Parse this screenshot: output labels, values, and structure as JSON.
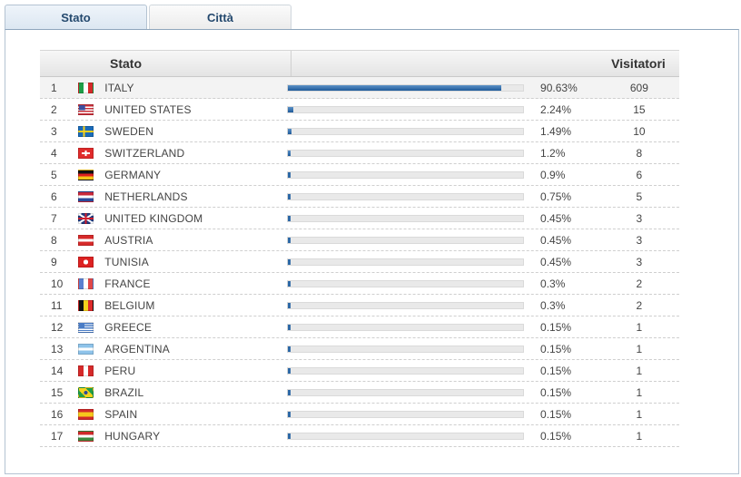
{
  "tabs": [
    {
      "label": "Stato",
      "active": true
    },
    {
      "label": "Città",
      "active": false
    }
  ],
  "table": {
    "headers": {
      "country": "Stato",
      "visitors": "Visitatori"
    },
    "rows": [
      {
        "rank": "1",
        "country": "ITALY",
        "percent": "90.63%",
        "visitors": "609",
        "share": 0.9063,
        "flag": "italy-flag-icon"
      },
      {
        "rank": "2",
        "country": "UNITED STATES",
        "percent": "2.24%",
        "visitors": "15",
        "share": 0.0224,
        "flag": "united-states-flag-icon"
      },
      {
        "rank": "3",
        "country": "SWEDEN",
        "percent": "1.49%",
        "visitors": "10",
        "share": 0.0149,
        "flag": "sweden-flag-icon"
      },
      {
        "rank": "4",
        "country": "SWITZERLAND",
        "percent": "1.2%",
        "visitors": "8",
        "share": 0.012,
        "flag": "switzerland-flag-icon"
      },
      {
        "rank": "5",
        "country": "GERMANY",
        "percent": "0.9%",
        "visitors": "6",
        "share": 0.009,
        "flag": "germany-flag-icon"
      },
      {
        "rank": "6",
        "country": "NETHERLANDS",
        "percent": "0.75%",
        "visitors": "5",
        "share": 0.0075,
        "flag": "netherlands-flag-icon"
      },
      {
        "rank": "7",
        "country": "UNITED KINGDOM",
        "percent": "0.45%",
        "visitors": "3",
        "share": 0.0045,
        "flag": "united-kingdom-flag-icon"
      },
      {
        "rank": "8",
        "country": "AUSTRIA",
        "percent": "0.45%",
        "visitors": "3",
        "share": 0.0045,
        "flag": "austria-flag-icon"
      },
      {
        "rank": "9",
        "country": "TUNISIA",
        "percent": "0.45%",
        "visitors": "3",
        "share": 0.0045,
        "flag": "tunisia-flag-icon"
      },
      {
        "rank": "10",
        "country": "FRANCE",
        "percent": "0.3%",
        "visitors": "2",
        "share": 0.003,
        "flag": "france-flag-icon"
      },
      {
        "rank": "11",
        "country": "BELGIUM",
        "percent": "0.3%",
        "visitors": "2",
        "share": 0.003,
        "flag": "belgium-flag-icon"
      },
      {
        "rank": "12",
        "country": "GREECE",
        "percent": "0.15%",
        "visitors": "1",
        "share": 0.0015,
        "flag": "greece-flag-icon"
      },
      {
        "rank": "13",
        "country": "ARGENTINA",
        "percent": "0.15%",
        "visitors": "1",
        "share": 0.0015,
        "flag": "argentina-flag-icon"
      },
      {
        "rank": "14",
        "country": "PERU",
        "percent": "0.15%",
        "visitors": "1",
        "share": 0.0015,
        "flag": "peru-flag-icon"
      },
      {
        "rank": "15",
        "country": "BRAZIL",
        "percent": "0.15%",
        "visitors": "1",
        "share": 0.0015,
        "flag": "brazil-flag-icon"
      },
      {
        "rank": "16",
        "country": "SPAIN",
        "percent": "0.15%",
        "visitors": "1",
        "share": 0.0015,
        "flag": "spain-flag-icon"
      },
      {
        "rank": "17",
        "country": "HUNGARY",
        "percent": "0.15%",
        "visitors": "1",
        "share": 0.0015,
        "flag": "hungary-flag-icon"
      }
    ]
  },
  "colors": {
    "bar": "#1e5a9a",
    "tab_text": "#24496e"
  }
}
